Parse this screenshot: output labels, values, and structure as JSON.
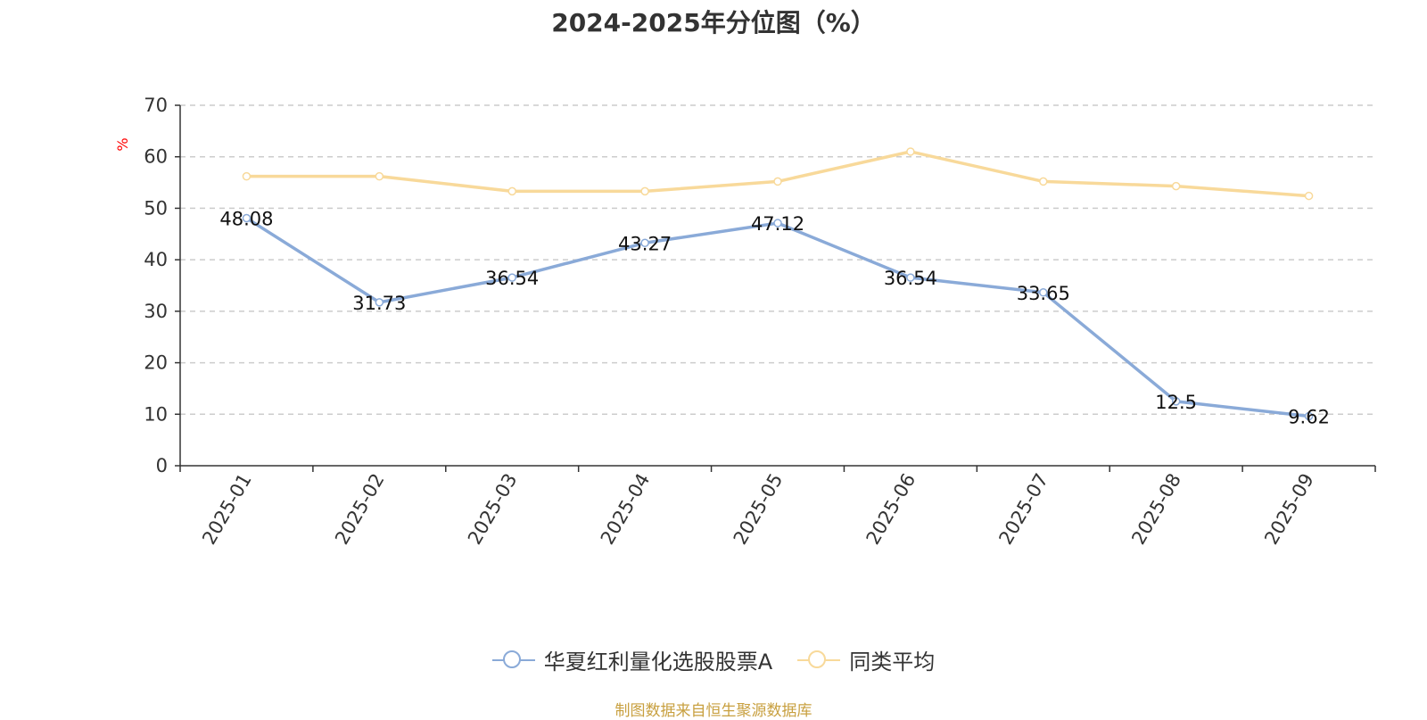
{
  "chart_data": {
    "type": "line",
    "title": "2024-2025年分位图（%）",
    "ylabel": "%",
    "xlabel": "",
    "ylim": [
      0,
      70
    ],
    "yticks": [
      0,
      10,
      20,
      30,
      40,
      50,
      60,
      70
    ],
    "grid": true,
    "categories": [
      "2025-01",
      "2025-02",
      "2025-03",
      "2025-04",
      "2025-05",
      "2025-06",
      "2025-07",
      "2025-08",
      "2025-09"
    ],
    "series": [
      {
        "name": "华夏红利量化选股股票A",
        "color": "#8aaad8",
        "values": [
          48.08,
          31.73,
          36.54,
          43.27,
          47.12,
          36.54,
          33.65,
          12.5,
          9.62
        ],
        "labels": [
          "48.08",
          "31.73",
          "36.54",
          "43.27",
          "47.12",
          "36.54",
          "33.65",
          "12.5",
          "9.62"
        ]
      },
      {
        "name": "同类平均",
        "color": "#f8d99a",
        "values": [
          56.2,
          56.2,
          53.3,
          53.3,
          55.2,
          61.0,
          55.2,
          54.3,
          52.4
        ]
      }
    ],
    "legend_position": "bottom-center",
    "source": "制图数据来自恒生聚源数据库"
  },
  "colors": {
    "axis": "#333333",
    "grid": "#cccccc",
    "unit_label": "#ff0000",
    "source": "#c8a040"
  }
}
